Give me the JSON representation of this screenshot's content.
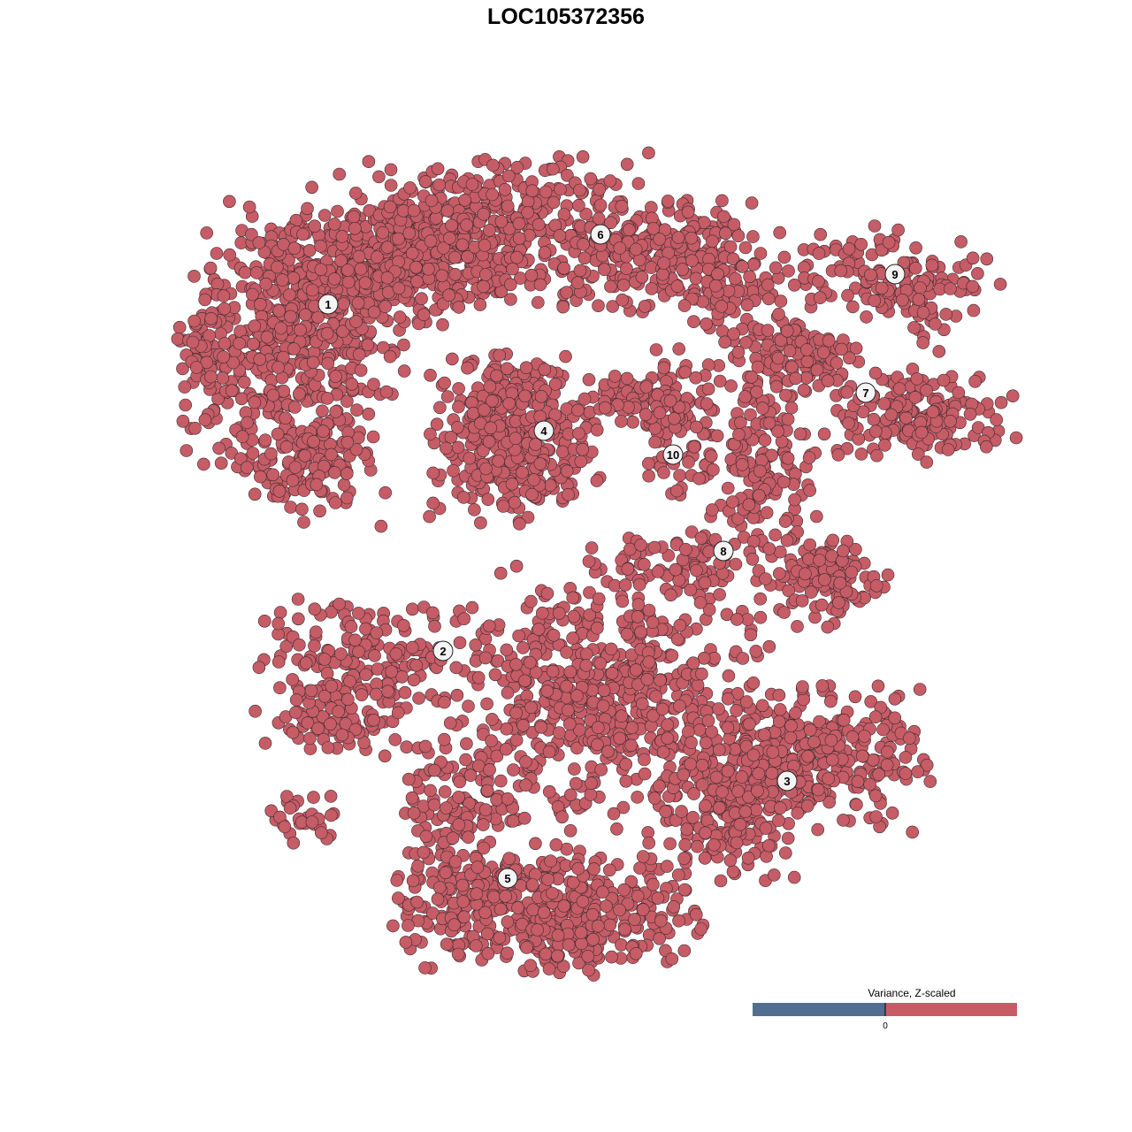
{
  "chart_data": {
    "type": "scatter",
    "title": "LOC105372356",
    "xlabel": "",
    "ylabel": "",
    "xlim": [
      -46.5,
      46.5
    ],
    "ylim": [
      -45.5,
      45.5
    ],
    "grid": false,
    "axes_visible": false,
    "point_color": "#c65c66",
    "point_stroke": "#3b2b2e",
    "clusters": [
      {
        "label": "1",
        "center": [
          -29.4,
          29.3
        ],
        "regions": [
          [
            -33.5,
            25.7,
            6,
            7,
            500
          ],
          [
            -23.5,
            33.7,
            6,
            3.5,
            300
          ],
          [
            -31.5,
            10.7,
            4,
            3,
            120
          ],
          [
            -43.5,
            23.7,
            1.5,
            4,
            50
          ]
        ]
      },
      {
        "label": "2",
        "center": [
          -16.4,
          -9.9
        ],
        "regions": [
          [
            -24.5,
            -10.3,
            6,
            3,
            150
          ],
          [
            -28.5,
            -17.3,
            4,
            2.5,
            100
          ],
          [
            -32.5,
            -28.8,
            3,
            1.5,
            30
          ]
        ]
      },
      {
        "label": "3",
        "center": [
          22.5,
          -24.6
        ],
        "regions": [
          [
            23.5,
            -22.3,
            7,
            4,
            400
          ],
          [
            15.5,
            -28.3,
            4,
            4,
            150
          ]
        ]
      },
      {
        "label": "4",
        "center": [
          -5.0,
          15.0
        ],
        "regions": [
          [
            -8.5,
            14.2,
            4.5,
            4.5,
            400
          ]
        ]
      },
      {
        "label": "5",
        "center": [
          -9.1,
          -35.6
        ],
        "regions": [
          [
            -4.5,
            -39.3,
            8,
            3.5,
            450
          ],
          [
            -14.5,
            -30.3,
            3.5,
            6,
            150
          ],
          [
            1.5,
            -15.3,
            9,
            7,
            600
          ]
        ]
      },
      {
        "label": "6",
        "center": [
          1.4,
          37.2
        ],
        "regions": [
          [
            -11.5,
            37.7,
            9,
            4,
            500
          ],
          [
            8.5,
            34.7,
            5,
            3,
            200
          ],
          [
            15.5,
            30.7,
            2.5,
            2.5,
            60
          ]
        ]
      },
      {
        "label": "7",
        "center": [
          31.4,
          19.3
        ],
        "regions": [
          [
            23.5,
            23.7,
            4,
            2.5,
            120
          ],
          [
            37.5,
            16.7,
            5,
            2.5,
            180
          ]
        ]
      },
      {
        "label": "8",
        "center": [
          15.3,
          1.4
        ],
        "regions": [
          [
            19.5,
            10.7,
            3,
            5,
            150
          ],
          [
            26.5,
            -1.8,
            3.5,
            2.5,
            120
          ],
          [
            9.5,
            -0.3,
            5,
            2,
            80
          ]
        ]
      },
      {
        "label": "9",
        "center": [
          34.7,
          32.7
        ],
        "regions": [
          [
            33.5,
            32.7,
            6,
            2.5,
            130
          ],
          [
            39,
            29.7,
            1.2,
            3,
            30
          ]
        ]
      },
      {
        "label": "10",
        "center": [
          9.6,
          12.3
        ],
        "regions": [
          [
            10,
            15.7,
            2.5,
            4,
            100
          ],
          [
            4.5,
            18.7,
            3,
            1.5,
            50
          ]
        ]
      }
    ],
    "legend": {
      "title": "Variance, Z-scaled",
      "placement": "bottom-right",
      "low_color": "#506e8f",
      "high_color": "#c65c66",
      "tick_label": "0"
    }
  }
}
